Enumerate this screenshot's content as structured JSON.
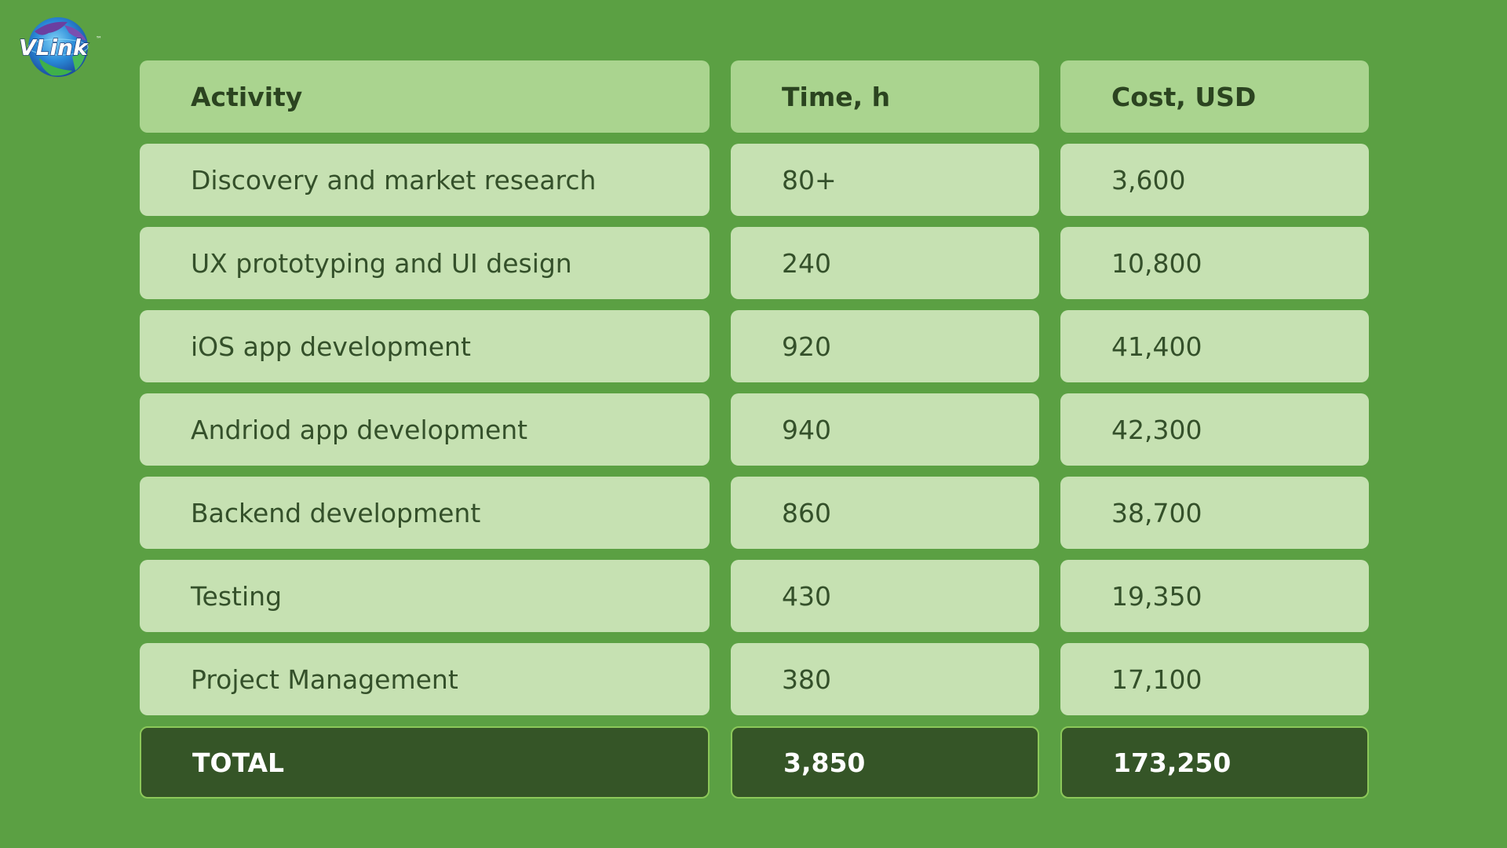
{
  "logo": {
    "text": "VLink",
    "trademark": "™"
  },
  "table": {
    "headers": [
      "Activity",
      "Time, h",
      "Cost, USD"
    ],
    "rows": [
      [
        "Discovery and market research",
        "80+",
        "3,600"
      ],
      [
        "UX prototyping and UI design",
        "240",
        "10,800"
      ],
      [
        "iOS app development",
        "920",
        "41,400"
      ],
      [
        "Andriod app development",
        "940",
        "42,300"
      ],
      [
        "Backend development",
        "860",
        "38,700"
      ],
      [
        "Testing",
        "430",
        "19,350"
      ],
      [
        "Project Management",
        "380",
        "17,100"
      ]
    ],
    "total": [
      "TOTAL",
      "3,850",
      "173,250"
    ]
  },
  "colors": {
    "background": "#5ba043",
    "header_cell": "#aad48f",
    "body_cell": "#c6e1b2",
    "total_cell": "#355527",
    "text_dark": "#2e4a22"
  }
}
